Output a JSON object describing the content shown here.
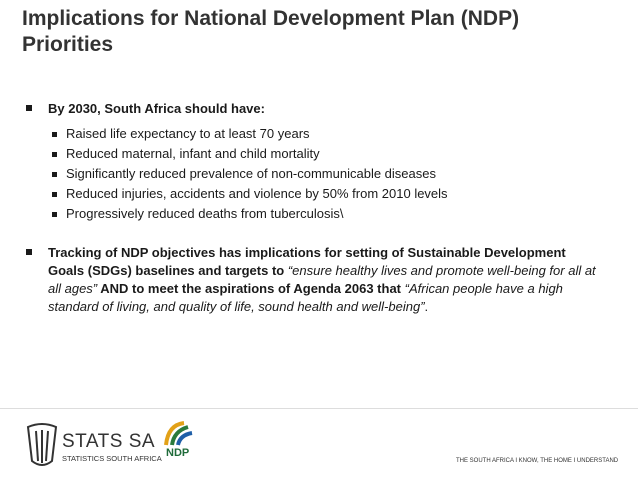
{
  "header": {
    "title": "Implications for National Development Plan (NDP) Priorities"
  },
  "body": {
    "bullets": [
      {
        "segments": [
          {
            "text": "By 2030, South Africa should have:",
            "style": "bold"
          }
        ],
        "sub_bullets": [
          "Raised life expectancy to at least 70 years",
          "Reduced maternal, infant and child mortality",
          "Significantly reduced prevalence of non-communicable diseases",
          "Reduced injuries, accidents and violence by 50% from 2010 levels",
          "Progressively reduced deaths from tuberculosis\\"
        ]
      },
      {
        "segments": [
          {
            "text": "Tracking of NDP objectives has implications for setting of Sustainable Development Goals (SDGs) baselines and targets to ",
            "style": "bold"
          },
          {
            "text": "“ensure healthy lives and promote well-being for all at all ages”",
            "style": "italic"
          },
          {
            "text": " AND to meet the aspirations of Agenda 2063 that ",
            "style": "bold"
          },
          {
            "text": "“African people have a high standard of living, and quality of life, sound health and well-being”",
            "style": "italic"
          },
          {
            "text": ".",
            "style": "normal"
          }
        ],
        "sub_bullets": []
      }
    ]
  },
  "footer": {
    "logo_name": "STATS SA",
    "logo_subtitle": "STATISTICS SOUTH AFRICA",
    "ndp_logo": "NDP",
    "tagline": "THE SOUTH AFRICA I KNOW, THE HOME I UNDERSTAND"
  }
}
